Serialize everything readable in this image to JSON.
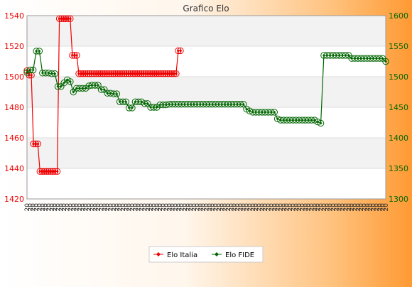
{
  "chart_data": {
    "type": "line",
    "title": "Grafico Elo",
    "grid": true,
    "legend_position": "bottom",
    "x_tick_text": "20",
    "left_axis": {
      "ylim": [
        1420,
        1540
      ],
      "ticks": [
        1420,
        1440,
        1460,
        1480,
        1500,
        1520,
        1540
      ],
      "color": "#ee0000"
    },
    "right_axis": {
      "ylim": [
        1300,
        1600
      ],
      "ticks": [
        1300,
        1350,
        1400,
        1450,
        1500,
        1550,
        1600
      ],
      "color": "#006600"
    },
    "series": [
      {
        "name": "Elo Italia",
        "axis": "left",
        "color": "#ee0000",
        "values": [
          1504,
          1501,
          1501,
          1456,
          1456,
          1456,
          1438,
          1438,
          1438,
          1438,
          1438,
          1438,
          1438,
          1438,
          1438,
          1538,
          1538,
          1538,
          1538,
          1538,
          1538,
          1514,
          1514,
          1514,
          1502,
          1502,
          1502,
          1502,
          1502,
          1502,
          1502,
          1502,
          1502,
          1502,
          1502,
          1502,
          1502,
          1502,
          1502,
          1502,
          1502,
          1502,
          1502,
          1502,
          1502,
          1502,
          1502,
          1502,
          1502,
          1502,
          1502,
          1502,
          1502,
          1502,
          1502,
          1502,
          1502,
          1502,
          1502,
          1502,
          1502,
          1502,
          1502,
          1502,
          1502,
          1502,
          1502,
          1502,
          1502,
          1502,
          1517,
          1517
        ]
      },
      {
        "name": "Elo FIDE",
        "axis": "right",
        "color": "#006600",
        "values": [
          1507,
          1511,
          1511,
          1542,
          1542,
          1506,
          1506,
          1506,
          1505,
          1505,
          1484,
          1484,
          1490,
          1495,
          1492,
          1475,
          1481,
          1481,
          1481,
          1481,
          1485,
          1486,
          1486,
          1486,
          1479,
          1479,
          1473,
          1473,
          1472,
          1472,
          1459,
          1459,
          1459,
          1449,
          1449,
          1459,
          1459,
          1459,
          1456,
          1456,
          1450,
          1450,
          1450,
          1454,
          1454,
          1454,
          1455,
          1455,
          1455,
          1455,
          1455,
          1455,
          1455,
          1455,
          1455,
          1455,
          1455,
          1455,
          1455,
          1455,
          1455,
          1455,
          1455,
          1455,
          1455,
          1455,
          1455,
          1455,
          1455,
          1455,
          1455,
          1447,
          1444,
          1442,
          1442,
          1442,
          1442,
          1442,
          1442,
          1442,
          1442,
          1431,
          1429,
          1429,
          1429,
          1429,
          1429,
          1429,
          1429,
          1429,
          1429,
          1429,
          1429,
          1429,
          1426,
          1424,
          1535,
          1535,
          1535,
          1535,
          1535,
          1535,
          1535,
          1535,
          1535,
          1530,
          1530,
          1530,
          1530,
          1530,
          1530,
          1530,
          1530,
          1530,
          1530,
          1530,
          1525
        ]
      }
    ]
  }
}
